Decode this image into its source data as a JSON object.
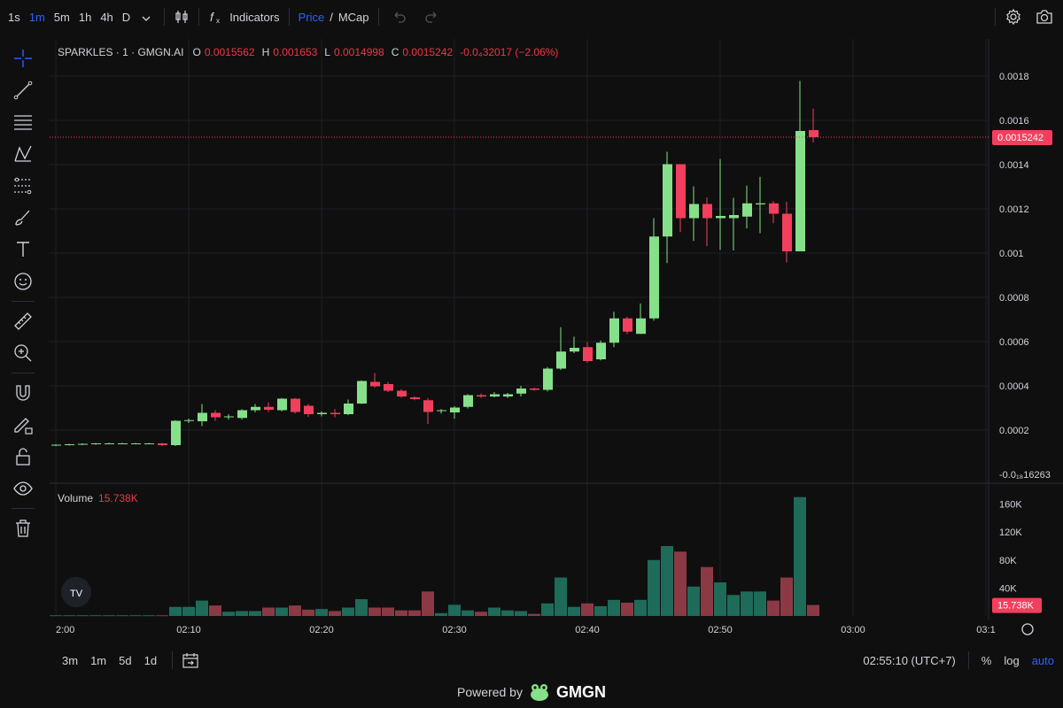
{
  "toolbar": {
    "timeframes": [
      "1s",
      "1m",
      "5m",
      "1h",
      "4h",
      "D"
    ],
    "active_timeframe": "1m",
    "indicators_label": "Indicators",
    "price_label": "Price",
    "price_sep": "/",
    "mcap_label": "MCap"
  },
  "legend": {
    "symbol": "SPARKLES · 1 · GMGN.AI",
    "o_label": "O",
    "o_value": "0.0015562",
    "h_label": "H",
    "h_value": "0.001653",
    "l_label": "L",
    "l_value": "0.0014998",
    "c_label": "C",
    "c_value": "0.0015242",
    "change": "-0.0₄32017 (−2.06%)"
  },
  "volume_legend": {
    "label": "Volume",
    "value": "15.738K"
  },
  "bottom": {
    "ranges": [
      "3m",
      "1m",
      "5d",
      "1d"
    ],
    "time": "02:55:10 (UTC+7)",
    "percent": "%",
    "log": "log",
    "auto": "auto"
  },
  "powered": {
    "text": "Powered by",
    "brand": "GMGN"
  },
  "colors": {
    "up": "#86e08a",
    "down": "#f23f5d",
    "vol_up": "#1e6b5a",
    "vol_down": "#8b3a45",
    "accent": "#2962ff"
  },
  "chart_data": {
    "type": "candlestick",
    "price_axis_ticks": [
      "0.0018",
      "0.0016",
      "0.0014",
      "0.0012",
      "0.001",
      "0.0008",
      "0.0006",
      "0.0004",
      "0.0002",
      "-0.0₁₈16263"
    ],
    "price_axis_values": [
      0.0018,
      0.0016,
      0.0014,
      0.0012,
      0.001,
      0.0008,
      0.0006,
      0.0004,
      0.0002,
      0
    ],
    "last_price_label": "0.0015242",
    "last_price": 0.0015242,
    "volume_axis_ticks": [
      "160K",
      "120K",
      "80K",
      "40K"
    ],
    "volume_axis_values": [
      160000,
      120000,
      80000,
      40000
    ],
    "last_volume_label": "15.738K",
    "time_axis_ticks": [
      "2:00",
      "02:10",
      "02:20",
      "02:30",
      "02:40",
      "02:50",
      "03:00",
      "03:1"
    ],
    "time_axis_values": [
      0,
      10,
      20,
      30,
      40,
      50,
      60,
      70
    ],
    "candles": [
      {
        "t": 0,
        "o": 0.000132,
        "h": 0.000136,
        "l": 0.000128,
        "c": 0.000134,
        "v": 1000
      },
      {
        "t": 1,
        "o": 0.000134,
        "h": 0.000138,
        "l": 0.00013,
        "c": 0.000136,
        "v": 1000
      },
      {
        "t": 2,
        "o": 0.000136,
        "h": 0.00014,
        "l": 0.000132,
        "c": 0.000138,
        "v": 1000
      },
      {
        "t": 3,
        "o": 0.000138,
        "h": 0.000142,
        "l": 0.000134,
        "c": 0.00014,
        "v": 1000
      },
      {
        "t": 4,
        "o": 0.00014,
        "h": 0.000143,
        "l": 0.000136,
        "c": 0.00014,
        "v": 1000
      },
      {
        "t": 5,
        "o": 0.00014,
        "h": 0.000142,
        "l": 0.000136,
        "c": 0.00014,
        "v": 1000
      },
      {
        "t": 6,
        "o": 0.00014,
        "h": 0.000142,
        "l": 0.000136,
        "c": 0.00014,
        "v": 1000
      },
      {
        "t": 7,
        "o": 0.00014,
        "h": 0.000142,
        "l": 0.000136,
        "c": 0.00014,
        "v": 1000
      },
      {
        "t": 8,
        "o": 0.00014,
        "h": 0.000142,
        "l": 0.000128,
        "c": 0.000132,
        "v": 1000
      },
      {
        "t": 9,
        "o": 0.000132,
        "h": 0.000245,
        "l": 0.000128,
        "c": 0.000242,
        "v": 13000
      },
      {
        "t": 10,
        "o": 0.000242,
        "h": 0.000252,
        "l": 0.000232,
        "c": 0.000245,
        "v": 13000
      },
      {
        "t": 11,
        "o": 0.00024,
        "h": 0.000318,
        "l": 0.000218,
        "c": 0.000278,
        "v": 22000
      },
      {
        "t": 12,
        "o": 0.000278,
        "h": 0.00029,
        "l": 0.000242,
        "c": 0.000258,
        "v": 15000
      },
      {
        "t": 13,
        "o": 0.00026,
        "h": 0.000272,
        "l": 0.000248,
        "c": 0.000262,
        "v": 6000
      },
      {
        "t": 14,
        "o": 0.000255,
        "h": 0.000295,
        "l": 0.000248,
        "c": 0.00029,
        "v": 7000
      },
      {
        "t": 15,
        "o": 0.00029,
        "h": 0.000318,
        "l": 0.00028,
        "c": 0.000305,
        "v": 7000
      },
      {
        "t": 16,
        "o": 0.000305,
        "h": 0.000325,
        "l": 0.000282,
        "c": 0.000292,
        "v": 12000
      },
      {
        "t": 17,
        "o": 0.00029,
        "h": 0.000345,
        "l": 0.000285,
        "c": 0.000342,
        "v": 12000
      },
      {
        "t": 18,
        "o": 0.000342,
        "h": 0.000345,
        "l": 0.000275,
        "c": 0.000282,
        "v": 15000
      },
      {
        "t": 19,
        "o": 0.00031,
        "h": 0.000318,
        "l": 0.00026,
        "c": 0.000272,
        "v": 9000
      },
      {
        "t": 20,
        "o": 0.000272,
        "h": 0.000285,
        "l": 0.000262,
        "c": 0.000278,
        "v": 10000
      },
      {
        "t": 21,
        "o": 0.000278,
        "h": 0.000295,
        "l": 0.000258,
        "c": 0.000272,
        "v": 7000
      },
      {
        "t": 22,
        "o": 0.000272,
        "h": 0.000338,
        "l": 0.000268,
        "c": 0.00032,
        "v": 12000
      },
      {
        "t": 23,
        "o": 0.00032,
        "h": 0.000425,
        "l": 0.000318,
        "c": 0.000422,
        "v": 24000
      },
      {
        "t": 24,
        "o": 0.000418,
        "h": 0.000458,
        "l": 0.000392,
        "c": 0.000398,
        "v": 12000
      },
      {
        "t": 25,
        "o": 0.000408,
        "h": 0.000418,
        "l": 0.000372,
        "c": 0.000378,
        "v": 12000
      },
      {
        "t": 26,
        "o": 0.000378,
        "h": 0.000385,
        "l": 0.000345,
        "c": 0.000352,
        "v": 8000
      },
      {
        "t": 27,
        "o": 0.000348,
        "h": 0.000352,
        "l": 0.000335,
        "c": 0.00034,
        "v": 8000
      },
      {
        "t": 28,
        "o": 0.000335,
        "h": 0.000345,
        "l": 0.000228,
        "c": 0.000282,
        "v": 35000
      },
      {
        "t": 29,
        "o": 0.00029,
        "h": 0.000295,
        "l": 0.000275,
        "c": 0.00029,
        "v": 4000
      },
      {
        "t": 30,
        "o": 0.00028,
        "h": 0.000308,
        "l": 0.000252,
        "c": 0.000302,
        "v": 16000
      },
      {
        "t": 31,
        "o": 0.000305,
        "h": 0.000362,
        "l": 0.000298,
        "c": 0.000358,
        "v": 8000
      },
      {
        "t": 32,
        "o": 0.000358,
        "h": 0.000365,
        "l": 0.000345,
        "c": 0.000352,
        "v": 6000
      },
      {
        "t": 33,
        "o": 0.000352,
        "h": 0.000372,
        "l": 0.000348,
        "c": 0.000362,
        "v": 12000
      },
      {
        "t": 34,
        "o": 0.000352,
        "h": 0.000368,
        "l": 0.000345,
        "c": 0.000362,
        "v": 8000
      },
      {
        "t": 35,
        "o": 0.000365,
        "h": 0.0004,
        "l": 0.000352,
        "c": 0.000388,
        "v": 7000
      },
      {
        "t": 36,
        "o": 0.000388,
        "h": 0.000392,
        "l": 0.000378,
        "c": 0.000382,
        "v": 3000
      },
      {
        "t": 37,
        "o": 0.000382,
        "h": 0.000485,
        "l": 0.000375,
        "c": 0.000478,
        "v": 18000
      },
      {
        "t": 38,
        "o": 0.000478,
        "h": 0.000665,
        "l": 0.000472,
        "c": 0.000555,
        "v": 55000
      },
      {
        "t": 39,
        "o": 0.000555,
        "h": 0.000622,
        "l": 0.000548,
        "c": 0.000572,
        "v": 13000
      },
      {
        "t": 40,
        "o": 0.000575,
        "h": 0.000598,
        "l": 0.000505,
        "c": 0.000512,
        "v": 18000
      },
      {
        "t": 41,
        "o": 0.00052,
        "h": 0.000605,
        "l": 0.000515,
        "c": 0.000595,
        "v": 14000
      },
      {
        "t": 42,
        "o": 0.000595,
        "h": 0.000735,
        "l": 0.000575,
        "c": 0.000705,
        "v": 23000
      },
      {
        "t": 43,
        "o": 0.000705,
        "h": 0.000712,
        "l": 0.000635,
        "c": 0.000645,
        "v": 19000
      },
      {
        "t": 44,
        "o": 0.000635,
        "h": 0.000772,
        "l": 0.000635,
        "c": 0.000705,
        "v": 23000
      },
      {
        "t": 45,
        "o": 0.000705,
        "h": 0.001158,
        "l": 0.000695,
        "c": 0.001075,
        "v": 80000
      },
      {
        "t": 46,
        "o": 0.001075,
        "h": 0.001458,
        "l": 0.000955,
        "c": 0.001402,
        "v": 100000
      },
      {
        "t": 47,
        "o": 0.001402,
        "h": 0.001402,
        "l": 0.001095,
        "c": 0.001158,
        "v": 92000
      },
      {
        "t": 48,
        "o": 0.001158,
        "h": 0.001302,
        "l": 0.001055,
        "c": 0.001222,
        "v": 42000
      },
      {
        "t": 49,
        "o": 0.001222,
        "h": 0.001252,
        "l": 0.001032,
        "c": 0.001158,
        "v": 70000
      },
      {
        "t": 50,
        "o": 0.001158,
        "h": 0.001425,
        "l": 0.001015,
        "c": 0.001168,
        "v": 48000
      },
      {
        "t": 51,
        "o": 0.001158,
        "h": 0.00125,
        "l": 0.001012,
        "c": 0.001172,
        "v": 30000
      },
      {
        "t": 52,
        "o": 0.001165,
        "h": 0.001305,
        "l": 0.001112,
        "c": 0.001225,
        "v": 35000
      },
      {
        "t": 53,
        "o": 0.00122,
        "h": 0.001345,
        "l": 0.00109,
        "c": 0.001225,
        "v": 35000
      },
      {
        "t": 54,
        "o": 0.001225,
        "h": 0.001235,
        "l": 0.001135,
        "c": 0.001178,
        "v": 22000
      },
      {
        "t": 55,
        "o": 0.001178,
        "h": 0.001232,
        "l": 0.000958,
        "c": 0.001008,
        "v": 55000
      },
      {
        "t": 56,
        "o": 0.001008,
        "h": 0.001778,
        "l": 0.001008,
        "c": 0.001552,
        "v": 170000
      },
      {
        "t": 57,
        "o": 0.0015562,
        "h": 0.001653,
        "l": 0.0014998,
        "c": 0.0015242,
        "v": 15738
      }
    ]
  }
}
